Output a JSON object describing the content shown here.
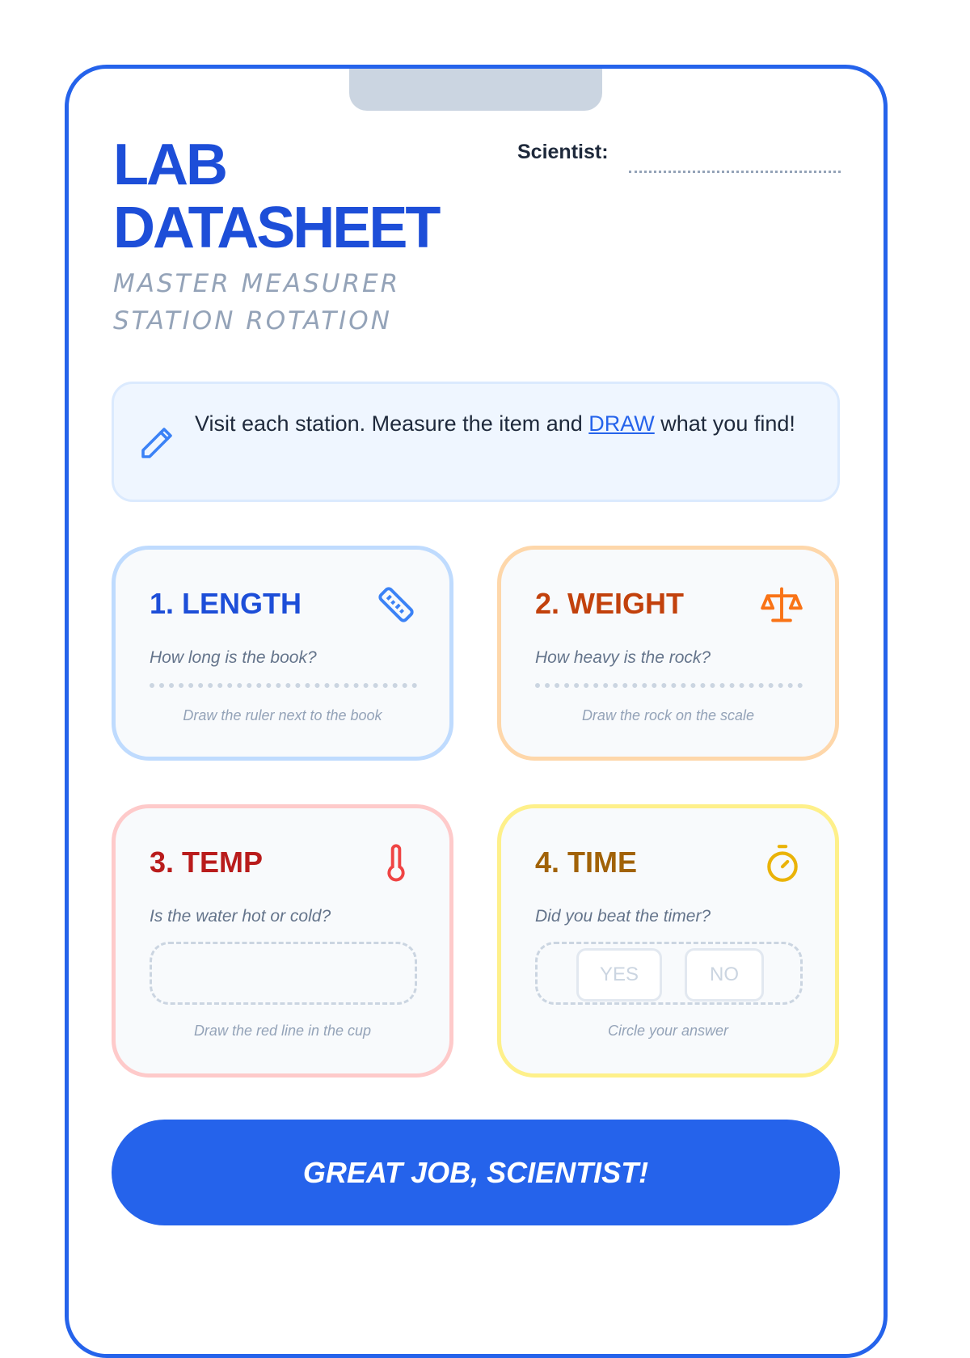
{
  "header": {
    "title_line1": "LAB",
    "title_line2": "DATASHEET",
    "subtitle_line1": "MASTER MEASURER",
    "subtitle_line2": "STATION ROTATION",
    "scientist_label": "Scientist:"
  },
  "instructions": {
    "before": "Visit each station. Measure the item and ",
    "link": "DRAW",
    "after": " what you find!",
    "icon": "pencil-icon"
  },
  "stations": [
    {
      "title": "1. LENGTH",
      "question": "How long is the book?",
      "hint": "Draw the ruler next to the book",
      "icon": "ruler-icon",
      "color": "#1d4ed8",
      "border": "#bfdbfe"
    },
    {
      "title": "2. WEIGHT",
      "question": "How heavy is the rock?",
      "hint": "Draw the rock on the scale",
      "icon": "scale-icon",
      "color": "#c2410c",
      "border": "#fed7aa"
    },
    {
      "title": "3. TEMP",
      "question": "Is the water hot or cold?",
      "hint": "Draw the red line in the cup",
      "icon": "thermometer-icon",
      "color": "#b91c1c",
      "border": "#fecaca"
    },
    {
      "title": "4. TIME",
      "question": "Did you beat the timer?",
      "hint": "Circle your answer",
      "icon": "stopwatch-icon",
      "color": "#a16207",
      "border": "#fef08a",
      "options": [
        "YES",
        "NO"
      ]
    }
  ],
  "footer": {
    "button_label": "GREAT JOB, SCIENTIST!"
  }
}
